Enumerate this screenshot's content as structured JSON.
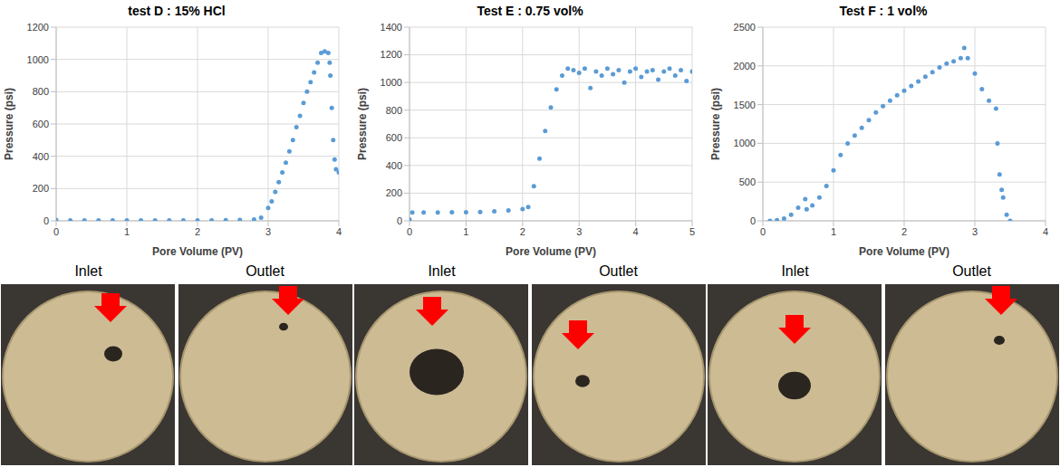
{
  "chart_data": [
    {
      "type": "scatter",
      "title": "test D : 15% HCl",
      "x_label": "Pore Volume (PV)",
      "y_label": "Pressure (psi)",
      "grid": true,
      "marker": "circle",
      "color": "#5b9bd5",
      "xlim": [
        0,
        4
      ],
      "xticks": [
        0,
        1,
        2,
        3,
        4
      ],
      "ylim": [
        0,
        1200
      ],
      "yticks": [
        0,
        200,
        400,
        600,
        800,
        1000,
        1200
      ],
      "x": [
        0,
        0.2,
        0.4,
        0.6,
        0.8,
        1.0,
        1.2,
        1.4,
        1.6,
        1.8,
        2.0,
        2.2,
        2.4,
        2.6,
        2.8,
        2.9,
        3.0,
        3.05,
        3.1,
        3.15,
        3.2,
        3.25,
        3.3,
        3.35,
        3.4,
        3.45,
        3.5,
        3.55,
        3.6,
        3.65,
        3.7,
        3.75,
        3.8,
        3.85,
        3.87,
        3.88,
        3.9,
        3.92,
        3.94,
        3.96,
        4.0
      ],
      "values": [
        5,
        3,
        3,
        3,
        3,
        3,
        3,
        3,
        3,
        3,
        3,
        3,
        4,
        5,
        8,
        20,
        80,
        120,
        180,
        240,
        300,
        360,
        430,
        500,
        580,
        650,
        730,
        800,
        860,
        920,
        980,
        1040,
        1050,
        1040,
        980,
        900,
        700,
        500,
        380,
        320,
        300
      ]
    },
    {
      "type": "scatter",
      "title": "Test E : 0.75 vol%",
      "x_label": "Pore Volume (PV)",
      "y_label": "Pressure (psi)",
      "grid": true,
      "marker": "circle",
      "color": "#5b9bd5",
      "xlim": [
        0,
        5
      ],
      "xticks": [
        0,
        1,
        2,
        3,
        4,
        5
      ],
      "ylim": [
        0,
        1400
      ],
      "yticks": [
        0,
        200,
        400,
        600,
        800,
        1000,
        1200,
        1400
      ],
      "x": [
        0,
        0.05,
        0.25,
        0.5,
        0.75,
        1.0,
        1.25,
        1.5,
        1.75,
        2.0,
        2.1,
        2.2,
        2.3,
        2.4,
        2.5,
        2.6,
        2.7,
        2.8,
        2.9,
        3.0,
        3.1,
        3.2,
        3.3,
        3.4,
        3.5,
        3.6,
        3.7,
        3.8,
        3.9,
        4.0,
        4.1,
        4.2,
        4.3,
        4.4,
        4.5,
        4.6,
        4.7,
        4.8,
        4.9,
        5.0
      ],
      "values": [
        10,
        60,
        60,
        60,
        62,
        62,
        64,
        68,
        75,
        85,
        100,
        250,
        450,
        650,
        820,
        950,
        1050,
        1100,
        1090,
        1070,
        1100,
        960,
        1080,
        1050,
        1100,
        1060,
        1090,
        1000,
        1080,
        1100,
        1040,
        1080,
        1090,
        1020,
        1080,
        1100,
        1050,
        1090,
        1010,
        1080
      ]
    },
    {
      "type": "scatter",
      "title": "Test F : 1 vol%",
      "x_label": "Pore Volume (PV)",
      "y_label": "Pressure (psi)",
      "grid": true,
      "marker": "circle",
      "color": "#5b9bd5",
      "xlim": [
        0,
        4
      ],
      "xticks": [
        0,
        1,
        2,
        3,
        4
      ],
      "ylim": [
        0,
        2500
      ],
      "yticks": [
        0,
        500,
        1000,
        1500,
        2000,
        2500
      ],
      "x": [
        0.1,
        0.2,
        0.3,
        0.4,
        0.5,
        0.6,
        0.62,
        0.7,
        0.8,
        0.9,
        1.0,
        1.1,
        1.2,
        1.3,
        1.4,
        1.5,
        1.6,
        1.7,
        1.8,
        1.9,
        2.0,
        2.1,
        2.2,
        2.3,
        2.4,
        2.5,
        2.6,
        2.7,
        2.8,
        2.85,
        2.9,
        3.0,
        3.1,
        3.2,
        3.3,
        3.32,
        3.35,
        3.38,
        3.4,
        3.45,
        3.5
      ],
      "values": [
        0,
        10,
        30,
        80,
        170,
        280,
        150,
        200,
        300,
        450,
        650,
        850,
        1000,
        1100,
        1200,
        1300,
        1400,
        1480,
        1550,
        1620,
        1680,
        1740,
        1800,
        1860,
        1920,
        1980,
        2030,
        2060,
        2100,
        2230,
        2100,
        1900,
        1700,
        1550,
        1450,
        1000,
        600,
        400,
        300,
        80,
        0
      ]
    }
  ],
  "photos": [
    {
      "labels": [
        "Inlet",
        "Outlet"
      ]
    },
    {
      "labels": [
        "Inlet",
        "Outlet"
      ]
    },
    {
      "labels": [
        "Inlet",
        "Outlet"
      ]
    }
  ]
}
